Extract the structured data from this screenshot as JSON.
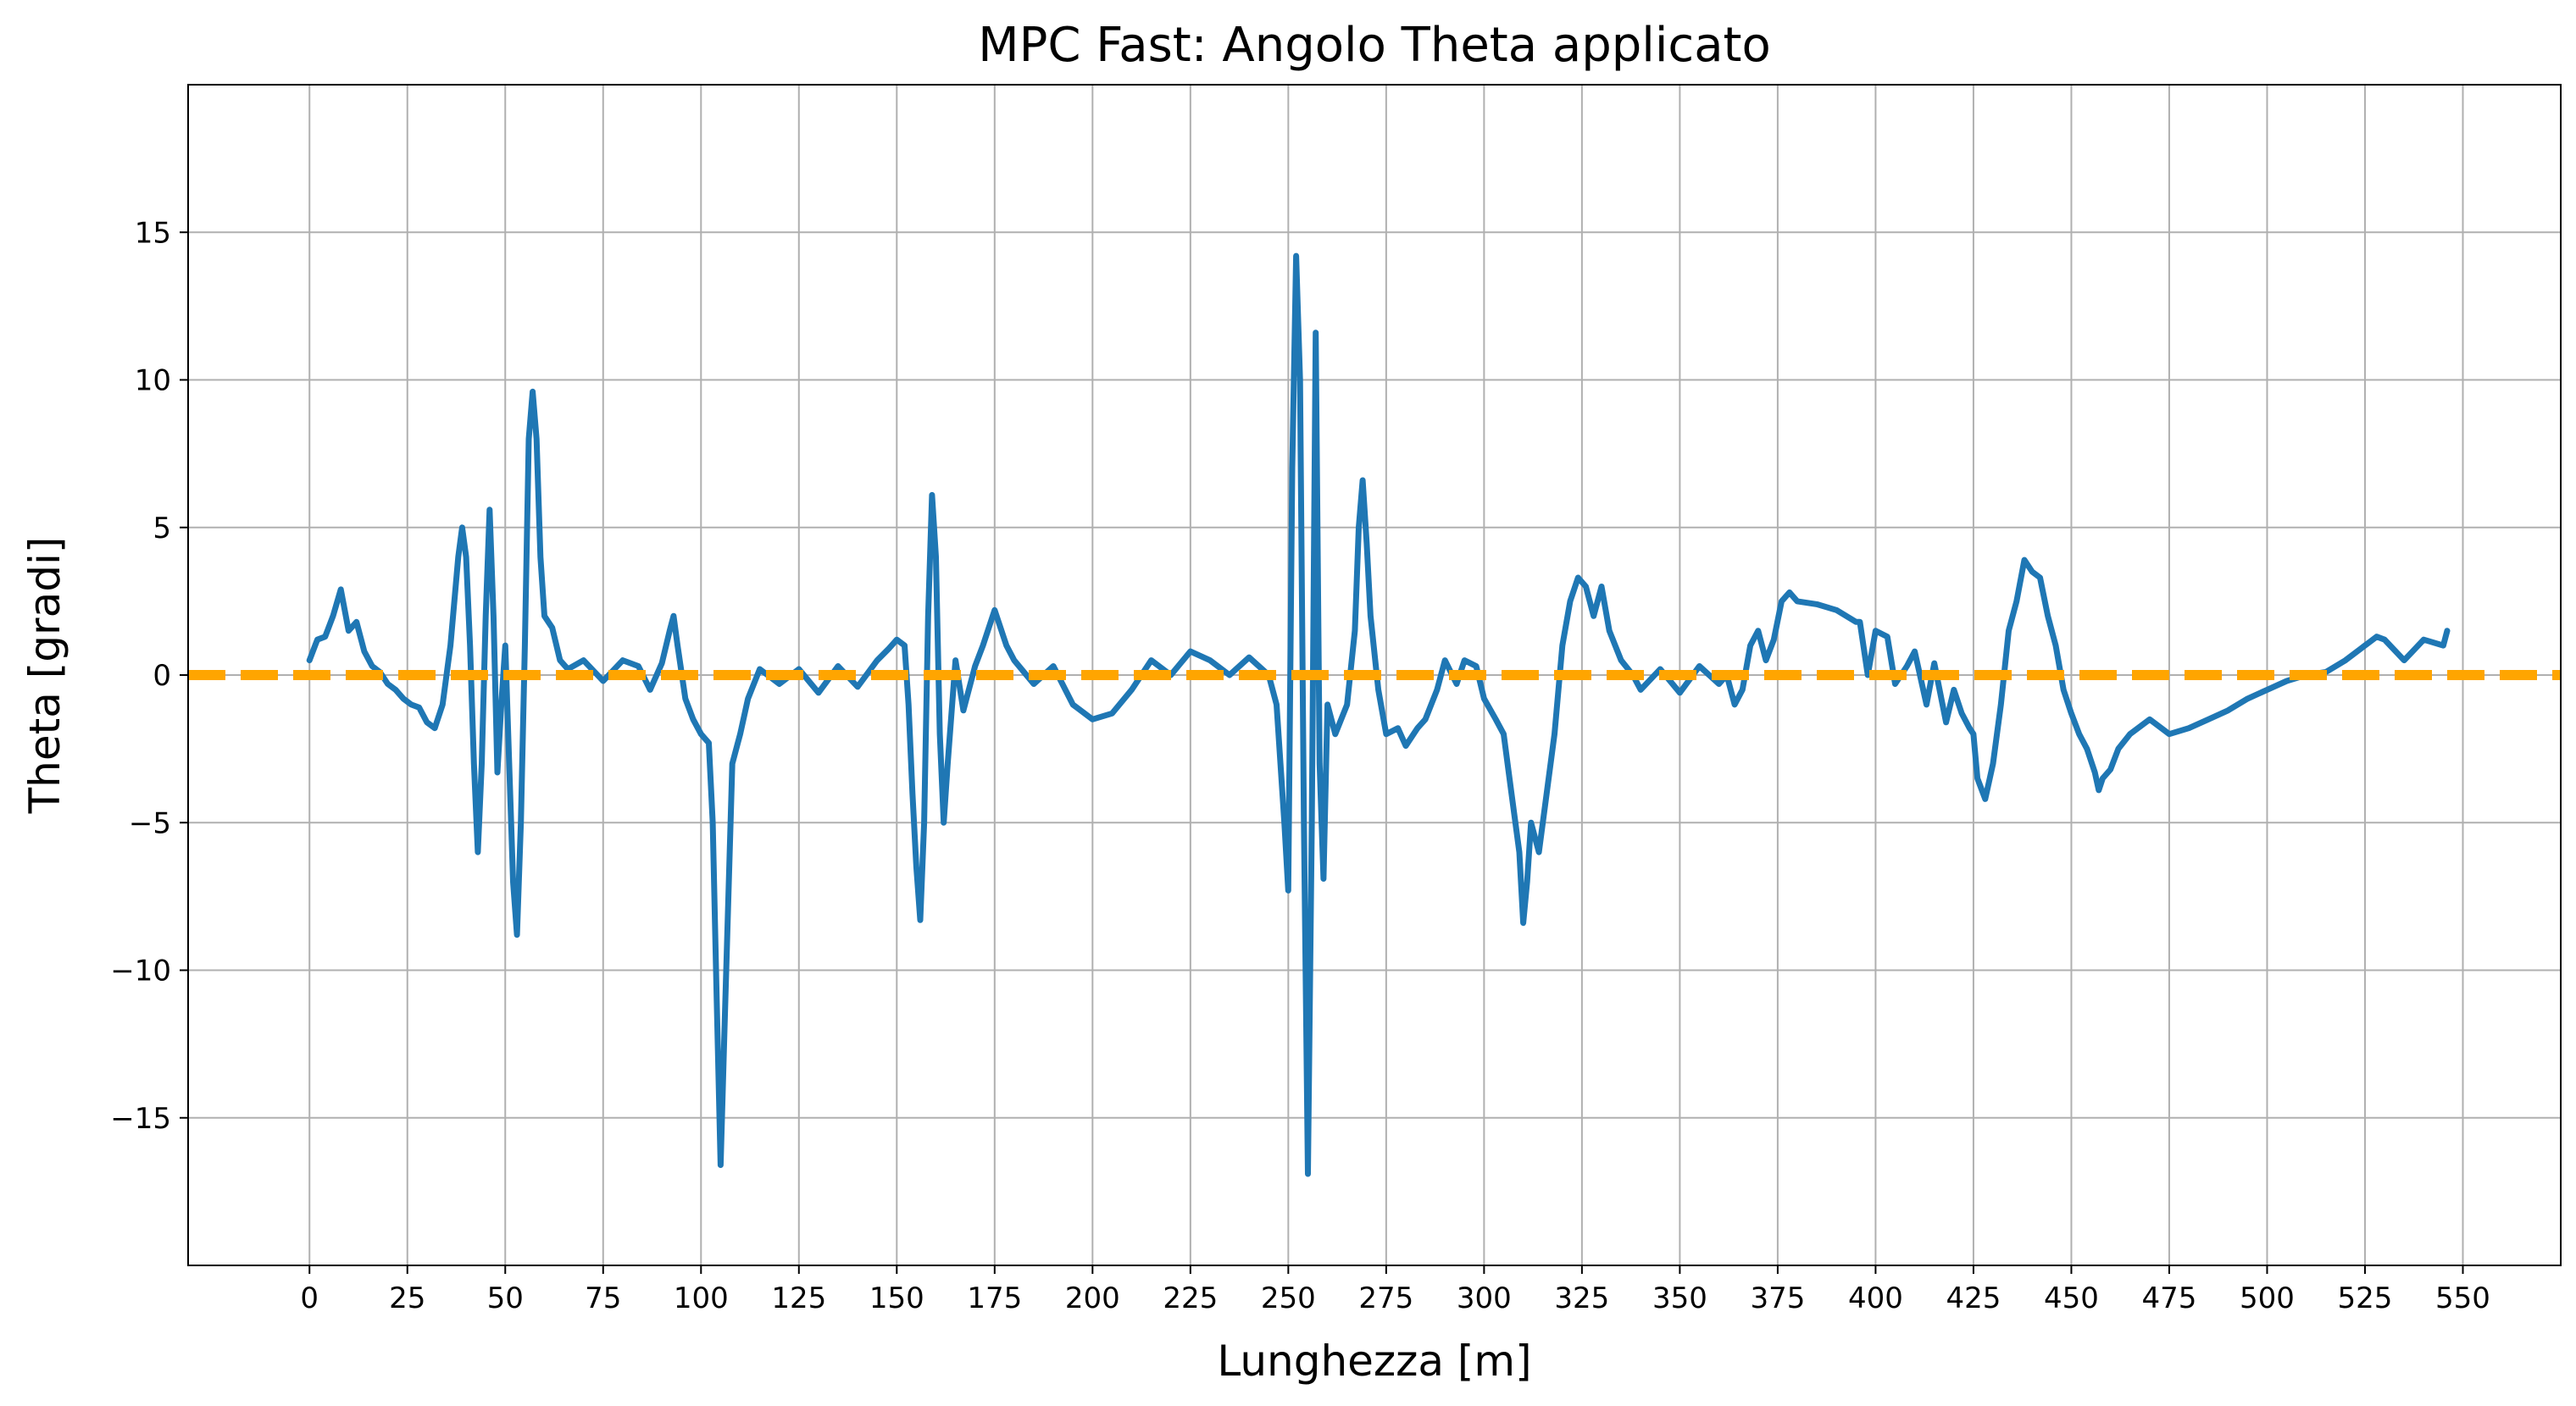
{
  "chart_data": {
    "type": "line",
    "title": "MPC Fast: Angolo Theta applicato",
    "xlabel": "Lunghezza [m]",
    "ylabel": "Theta [gradi]",
    "xlim": [
      -31,
      575
    ],
    "ylim": [
      -20,
      20
    ],
    "xticks": [
      0,
      25,
      50,
      75,
      100,
      125,
      150,
      175,
      200,
      225,
      250,
      275,
      300,
      325,
      350,
      375,
      400,
      425,
      450,
      475,
      500,
      525,
      550
    ],
    "yticks": [
      -15,
      -10,
      -5,
      0,
      5,
      10,
      15
    ],
    "ytick_labels": [
      "−15",
      "−10",
      "−5",
      "0",
      "5",
      "10",
      "15"
    ],
    "grid": true,
    "colors": {
      "series": "#1f77b4",
      "reference": "#ffa500",
      "grid": "#b0b0b0"
    },
    "series": [
      {
        "style": "solid",
        "x": [
          0,
          2,
          4,
          6,
          8,
          10,
          12,
          14,
          16,
          18,
          20,
          22,
          24,
          26,
          28,
          30,
          32,
          34,
          36,
          38,
          39,
          40,
          41,
          42,
          43,
          44,
          45,
          46,
          47,
          48,
          49,
          50,
          51,
          52,
          53,
          54,
          55,
          56,
          57,
          58,
          59,
          60,
          62,
          64,
          66,
          70,
          75,
          80,
          84,
          87,
          90,
          92,
          93,
          94,
          96,
          98,
          100,
          102,
          103,
          104,
          105,
          106,
          108,
          110,
          112,
          115,
          120,
          125,
          130,
          135,
          140,
          145,
          148,
          150,
          152,
          153,
          154,
          155,
          156,
          157,
          158,
          159,
          160,
          161,
          162,
          163,
          165,
          167,
          170,
          172,
          175,
          178,
          180,
          185,
          190,
          195,
          200,
          205,
          210,
          215,
          220,
          225,
          230,
          235,
          240,
          245,
          247,
          248,
          249,
          250,
          251,
          252,
          253,
          254,
          255,
          256,
          257,
          258,
          259,
          260,
          262,
          265,
          267,
          268,
          269,
          270,
          271,
          273,
          275,
          278,
          280,
          283,
          285,
          288,
          290,
          293,
          295,
          298,
          300,
          303,
          305,
          307,
          309,
          310,
          311,
          312,
          314,
          316,
          318,
          320,
          322,
          324,
          326,
          328,
          330,
          332,
          335,
          338,
          340,
          345,
          350,
          355,
          360,
          362,
          364,
          366,
          368,
          370,
          372,
          374,
          376,
          378,
          380,
          385,
          390,
          395,
          396,
          398,
          400,
          403,
          405,
          408,
          410,
          413,
          415,
          418,
          420,
          422,
          424,
          425,
          426,
          428,
          430,
          432,
          434,
          436,
          438,
          440,
          442,
          444,
          446,
          448,
          450,
          452,
          454,
          456,
          457,
          458,
          460,
          462,
          465,
          470,
          475,
          480,
          485,
          490,
          495,
          500,
          505,
          510,
          515,
          520,
          525,
          528,
          530,
          535,
          540,
          545,
          546
        ],
        "y": [
          0.5,
          1.2,
          1.3,
          2.0,
          2.9,
          1.5,
          1.8,
          0.8,
          0.3,
          0.1,
          -0.3,
          -0.5,
          -0.8,
          -1.0,
          -1.1,
          -1.6,
          -1.8,
          -1.0,
          1.0,
          4.0,
          5.0,
          4.0,
          1.0,
          -3.0,
          -6.0,
          -3.0,
          2.0,
          5.6,
          2.0,
          -3.3,
          -1.0,
          1.0,
          -3.0,
          -7.0,
          -8.8,
          -5.0,
          1.0,
          8.0,
          9.6,
          8.0,
          4.0,
          2.0,
          1.6,
          0.5,
          0.2,
          0.5,
          -0.2,
          0.5,
          0.3,
          -0.5,
          0.4,
          1.5,
          2.0,
          1.0,
          -0.8,
          -1.5,
          -2.0,
          -2.3,
          -5.0,
          -11.0,
          -16.6,
          -12.0,
          -3.0,
          -2.0,
          -0.8,
          0.2,
          -0.3,
          0.2,
          -0.6,
          0.3,
          -0.4,
          0.5,
          0.9,
          1.2,
          1.0,
          -1.0,
          -4.0,
          -6.5,
          -8.3,
          -5.0,
          2.0,
          6.1,
          4.0,
          -2.0,
          -5.0,
          -3.0,
          0.5,
          -1.2,
          0.3,
          1.0,
          2.2,
          1.0,
          0.5,
          -0.3,
          0.3,
          -1.0,
          -1.5,
          -1.3,
          -0.5,
          0.5,
          0.0,
          0.8,
          0.5,
          0.0,
          0.6,
          0.0,
          -1.0,
          -3.0,
          -5.0,
          -7.3,
          7.0,
          14.2,
          10.0,
          -5.0,
          -16.9,
          -5.0,
          11.6,
          -3.0,
          -6.9,
          -1.0,
          -2.0,
          -1.0,
          1.5,
          5.0,
          6.6,
          4.5,
          2.0,
          -0.5,
          -2.0,
          -1.8,
          -2.4,
          -1.8,
          -1.5,
          -0.5,
          0.5,
          -0.3,
          0.5,
          0.3,
          -0.8,
          -1.5,
          -2.0,
          -4.0,
          -6.0,
          -8.4,
          -7.0,
          -5.0,
          -6.0,
          -4.0,
          -2.0,
          1.0,
          2.5,
          3.3,
          3.0,
          2.0,
          3.0,
          1.5,
          0.5,
          0.0,
          -0.5,
          0.2,
          -0.6,
          0.3,
          -0.3,
          0.0,
          -1.0,
          -0.5,
          1.0,
          1.5,
          0.5,
          1.2,
          2.5,
          2.8,
          2.5,
          2.4,
          2.2,
          1.8,
          1.8,
          0.0,
          1.5,
          1.3,
          -0.3,
          0.3,
          0.8,
          -1.0,
          0.4,
          -1.6,
          -0.5,
          -1.3,
          -1.8,
          -2.0,
          -3.5,
          -4.2,
          -3.0,
          -1.0,
          1.5,
          2.5,
          3.9,
          3.5,
          3.3,
          2.0,
          1.0,
          -0.5,
          -1.3,
          -2.0,
          -2.5,
          -3.3,
          -3.9,
          -3.5,
          -3.2,
          -2.5,
          -2.0,
          -1.5,
          -2.0,
          -1.8,
          -1.5,
          -1.2,
          -0.8,
          -0.5,
          -0.2,
          0.0,
          0.1,
          0.5,
          1.0,
          1.3,
          1.2,
          0.5,
          1.2,
          1.0,
          1.5
        ]
      },
      {
        "style": "dashed",
        "x": [
          -31,
          575
        ],
        "y": [
          0,
          0
        ]
      }
    ]
  }
}
